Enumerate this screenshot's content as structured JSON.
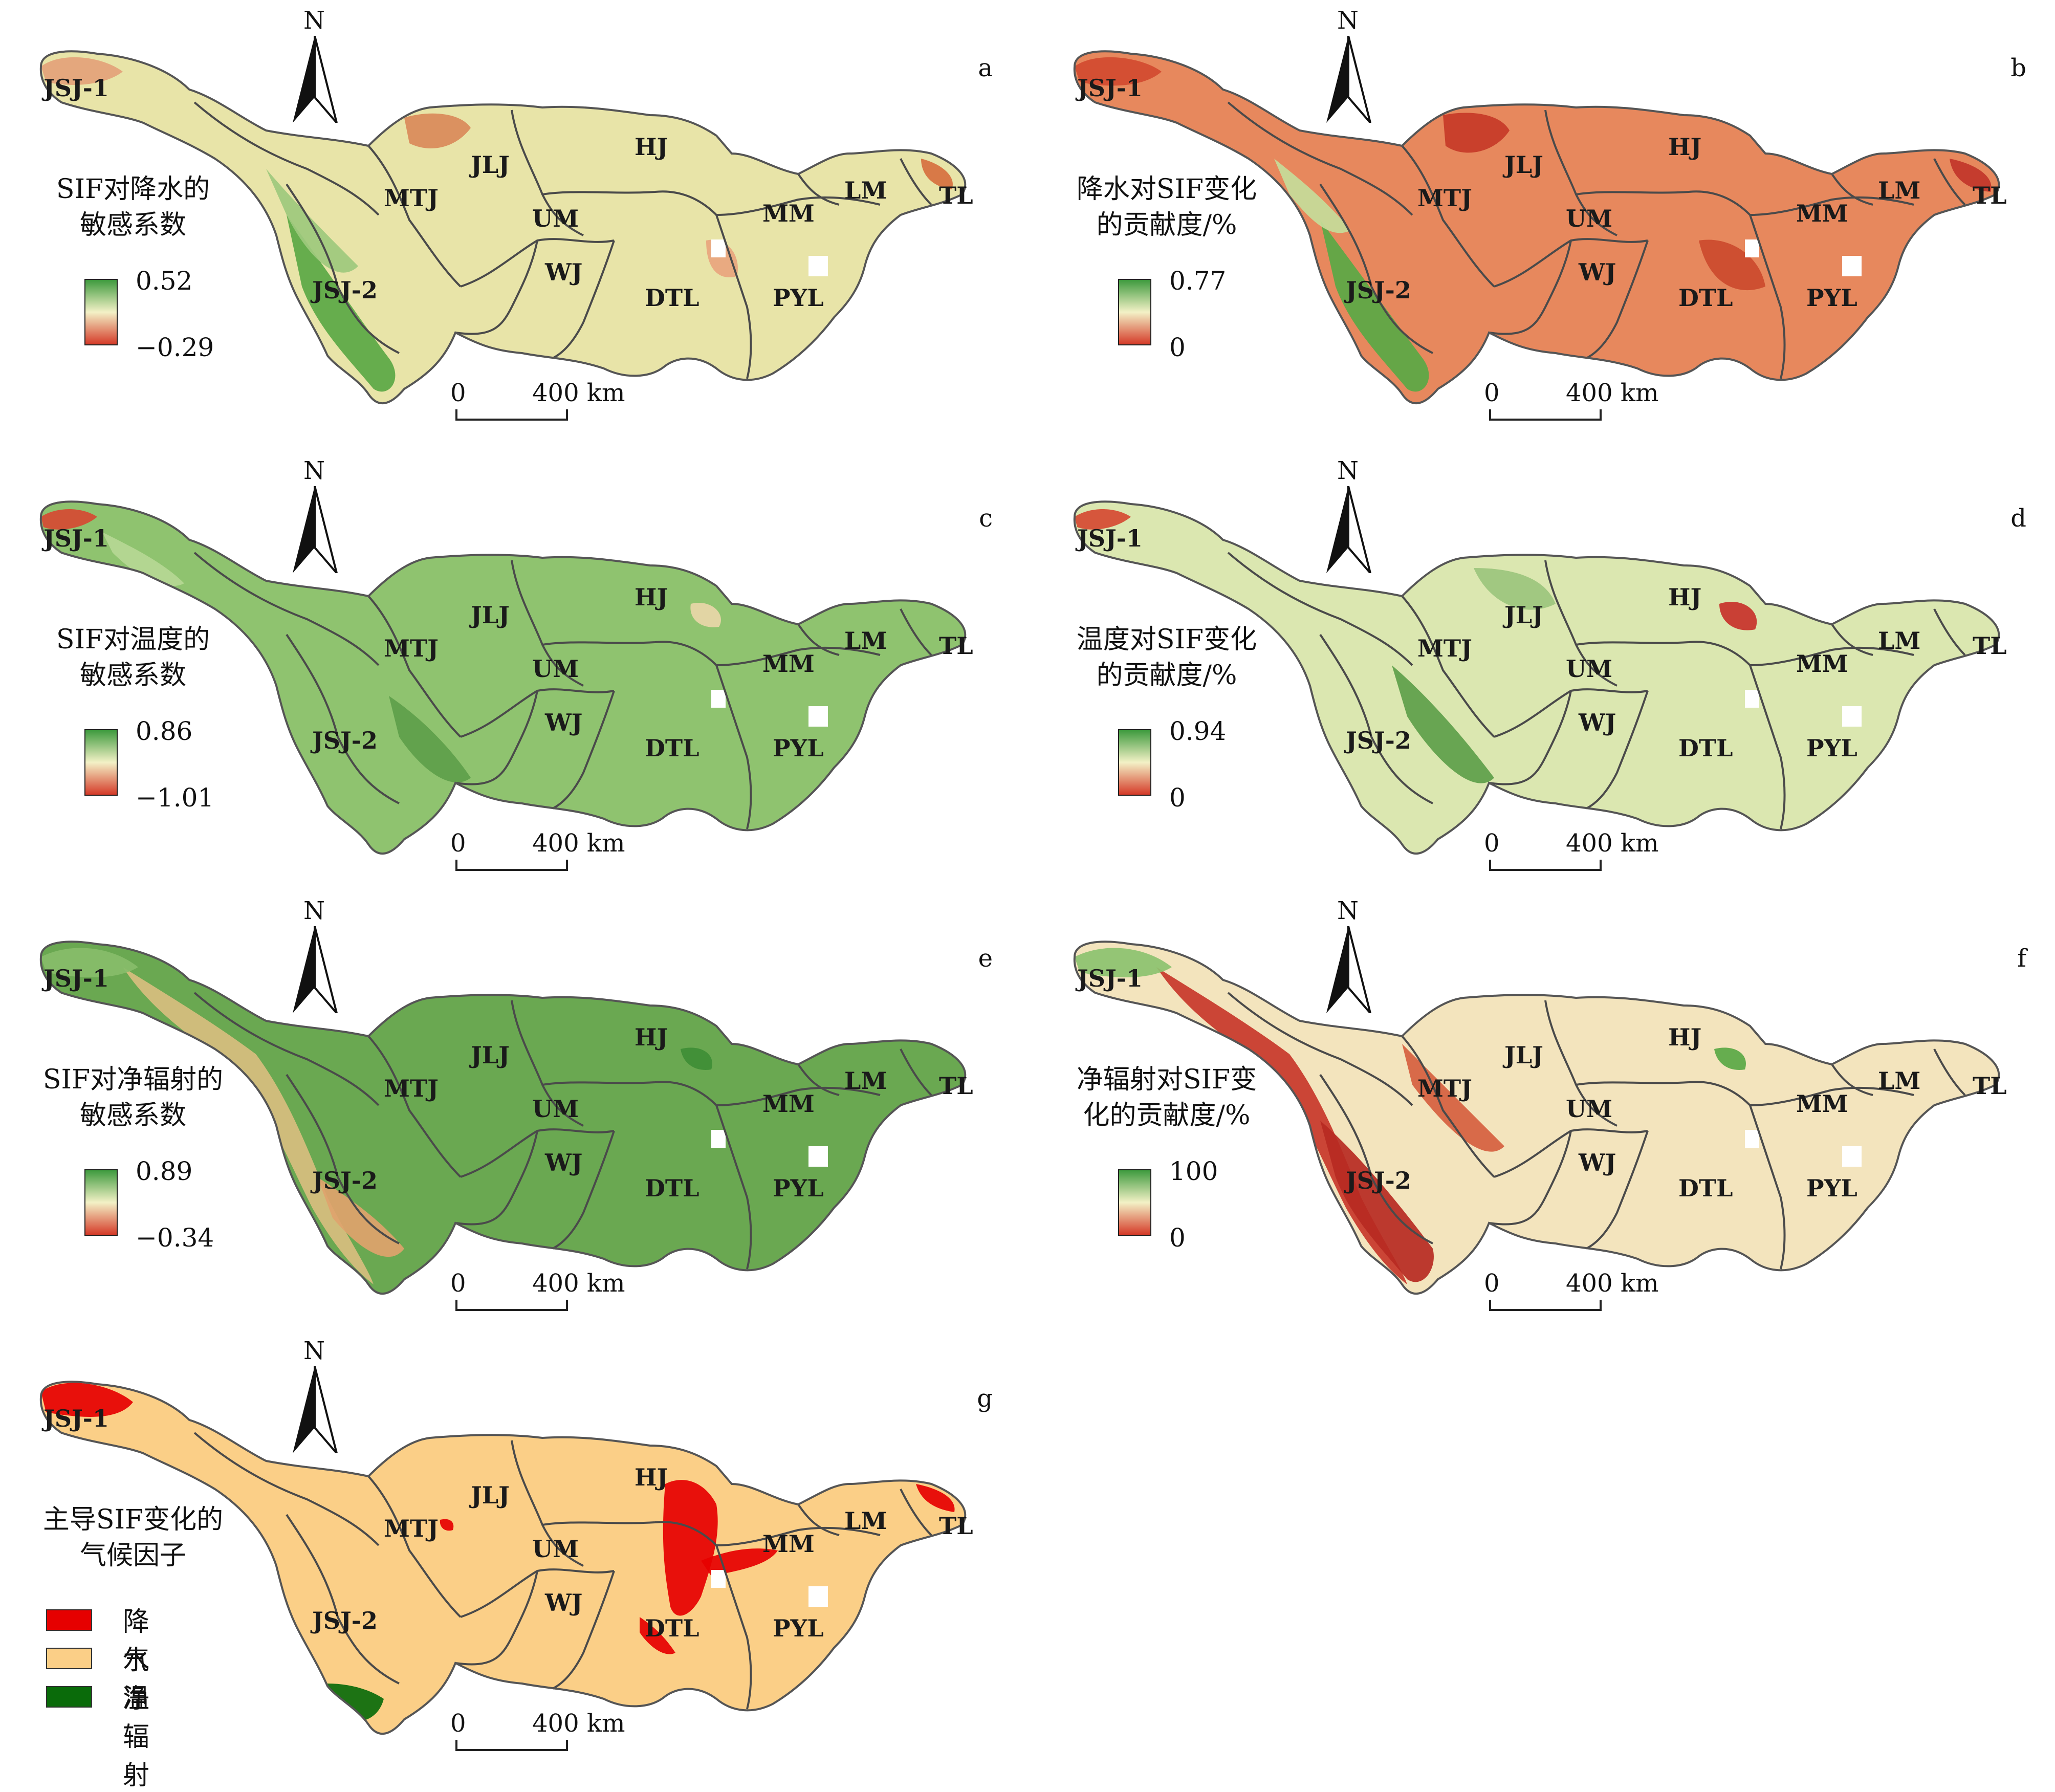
{
  "north_label": "N",
  "scale": {
    "zero": "0",
    "distance": "400 km"
  },
  "regions": [
    "JSJ-1",
    "JSJ-2",
    "MTJ",
    "JLJ",
    "HJ",
    "UM",
    "WJ",
    "DTL",
    "PYL",
    "MM",
    "LM",
    "TL"
  ],
  "panels": [
    {
      "letter": "a",
      "title": [
        "SIF对降水的",
        "敏感系数"
      ],
      "max": "0.52",
      "min": "−0.29",
      "theme": "sens_precip"
    },
    {
      "letter": "b",
      "title": [
        "降水对SIF变化",
        "的贡献度/%"
      ],
      "max": "0.77",
      "min": "0",
      "theme": "contrib_precip"
    },
    {
      "letter": "c",
      "title": [
        "SIF对温度的",
        "敏感系数"
      ],
      "max": "0.86",
      "min": "−1.01",
      "theme": "sens_temp"
    },
    {
      "letter": "d",
      "title": [
        "温度对SIF变化",
        "的贡献度/%"
      ],
      "max": "0.94",
      "min": "0",
      "theme": "contrib_temp"
    },
    {
      "letter": "e",
      "title": [
        "SIF对净辐射的",
        "敏感系数"
      ],
      "max": "0.89",
      "min": "−0.34",
      "theme": "sens_rad"
    },
    {
      "letter": "f",
      "title": [
        "净辐射对SIF变",
        "化的贡献度/%"
      ],
      "max": "100",
      "min": "0",
      "theme": "contrib_rad"
    },
    {
      "letter": "g",
      "title": [
        "主导SIF变化的",
        "气候因子"
      ],
      "theme": "dominant",
      "legend": [
        {
          "label": "降水",
          "color": "#e60000"
        },
        {
          "label": "气温",
          "color": "#fbcf87"
        },
        {
          "label": "净辐射",
          "color": "#0a6b0a"
        }
      ]
    }
  ],
  "colors": {
    "green": "#5aa845",
    "light_green": "#a9d08a",
    "cream": "#f3ecc4",
    "orange": "#e49060",
    "red": "#cf3b28",
    "dominant_bg": "#fbcf87",
    "dominant_red": "#e60000",
    "dominant_green": "#0a6b0a"
  }
}
